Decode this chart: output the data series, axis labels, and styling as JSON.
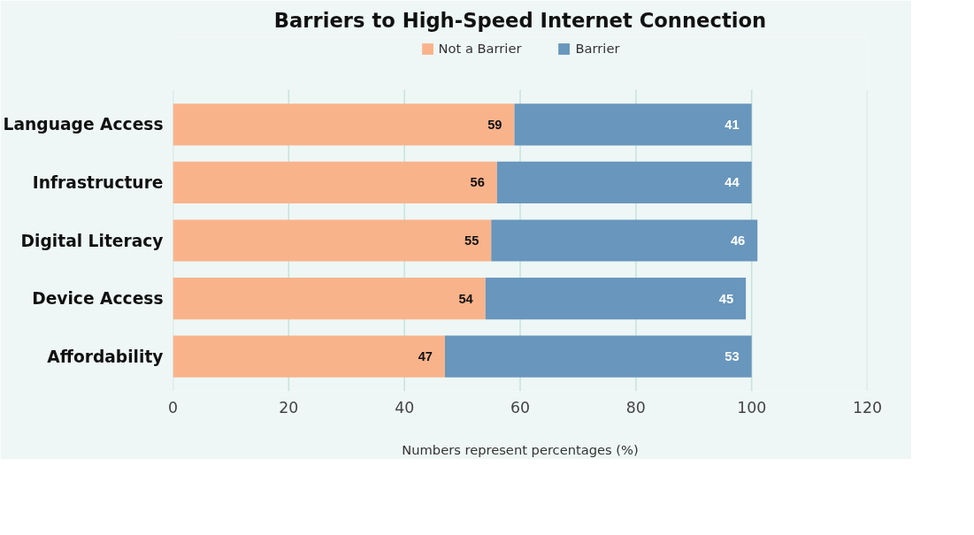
{
  "chart_data": {
    "type": "bar",
    "orientation": "horizontal",
    "stacked": true,
    "title": "Barriers to High-Speed Internet Connection",
    "xlabel": "Numbers represent percentages (%)",
    "categories": [
      "Language Access",
      "Infrastructure",
      "Digital Literacy",
      "Device Access",
      "Affordability"
    ],
    "series": [
      {
        "name": "Not a Barrier",
        "color": "#f9b38b",
        "values": [
          59,
          56,
          55,
          54,
          47
        ]
      },
      {
        "name": "Barrier",
        "color": "#6896bd",
        "values": [
          41,
          44,
          46,
          45,
          53
        ]
      }
    ],
    "xlim": [
      0,
      120
    ],
    "xticks": [
      0,
      20,
      40,
      60,
      80,
      100,
      120
    ],
    "grid": "x",
    "legend": "top",
    "data_labels": true
  }
}
